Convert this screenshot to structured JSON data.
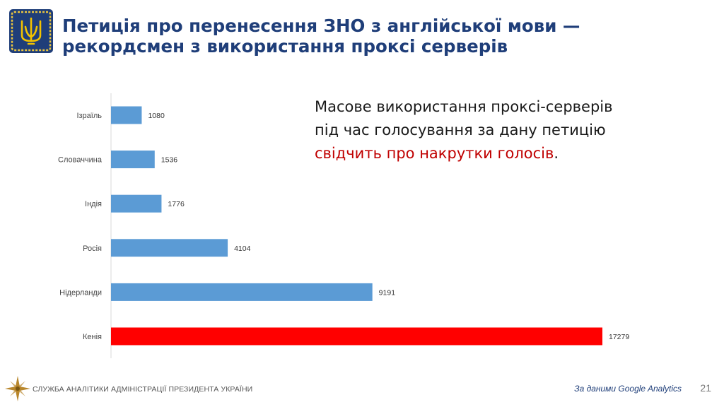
{
  "title": {
    "line1": "Петиція про перенесення ЗНО з англійської мови —",
    "line2": "рекордсмен з використання проксі серверів"
  },
  "callout": {
    "line1": "Масове використання проксі-серверів",
    "line2": "під час голосування за дану петицію",
    "highlight": "свідчить про накрутки голосів",
    "end": "."
  },
  "footer": {
    "org": "СЛУЖБА АНАЛІТИКИ  АДМІНІСТРАЦІЇ ПРЕЗИДЕНТА УКРАЇНИ",
    "source": "За даними Google Analytics",
    "page": "21"
  },
  "icons": {
    "emblem": "trident-emblem-icon",
    "footer_logo": "compass-star-icon"
  },
  "colors": {
    "title": "#1f3e79",
    "bar": "#5b9bd5",
    "highlight_bar": "#ff0000",
    "highlight_text": "#c00000"
  },
  "chart_data": {
    "type": "bar",
    "orientation": "horizontal",
    "categories": [
      "Ізраїль",
      "Словаччина",
      "Індія",
      "Росія",
      "Нідерланди",
      "Кенія"
    ],
    "values": [
      1080,
      1536,
      1776,
      4104,
      9191,
      17279
    ],
    "highlight": "Кенія",
    "title": "",
    "xlabel": "",
    "ylabel": "",
    "xlim": [
      0,
      17279
    ],
    "grid": false,
    "legend": "none"
  }
}
